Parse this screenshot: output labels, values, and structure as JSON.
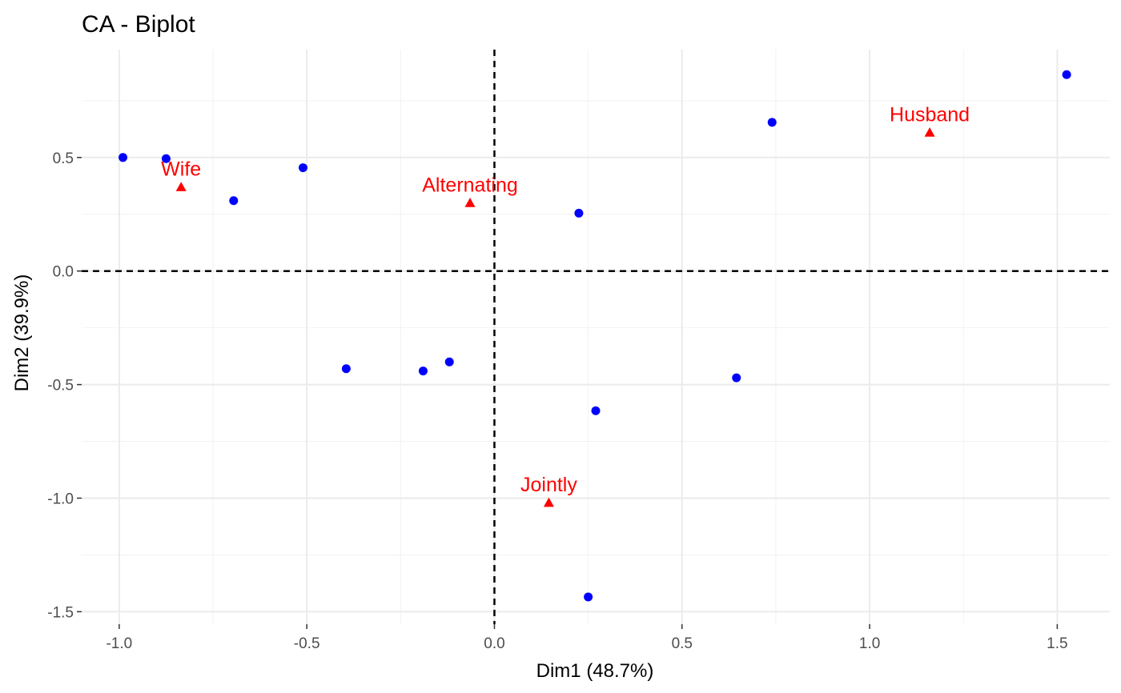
{
  "chart_data": {
    "type": "scatter",
    "title": "CA - Biplot",
    "xlabel": "Dim1 (48.7%)",
    "ylabel": "Dim2 (39.9%)",
    "xlim": [
      -1.1,
      1.64
    ],
    "ylim": [
      -1.555,
      0.975
    ],
    "x_ticks": [
      -1.0,
      -0.5,
      0.0,
      0.5,
      1.0,
      1.5
    ],
    "x_tick_labels": [
      "-1.0",
      "-0.5",
      "0.0",
      "0.5",
      "1.0",
      "1.5"
    ],
    "y_ticks": [
      -1.5,
      -1.0,
      -0.5,
      0.0,
      0.5
    ],
    "y_tick_labels": [
      "-1.5",
      "-1.0",
      "-0.5",
      "0.0",
      "0.5"
    ],
    "grid": true,
    "reference_lines": {
      "x": 0,
      "y": 0,
      "style": "dashed"
    },
    "series": [
      {
        "role": "rows",
        "marker": "circle",
        "color": "#0000ff",
        "points": [
          {
            "x": -0.99,
            "y": 0.5
          },
          {
            "x": -0.875,
            "y": 0.495
          },
          {
            "x": -0.695,
            "y": 0.31
          },
          {
            "x": -0.51,
            "y": 0.455
          },
          {
            "x": -0.395,
            "y": -0.43
          },
          {
            "x": -0.19,
            "y": -0.44
          },
          {
            "x": -0.12,
            "y": -0.4
          },
          {
            "x": 0.225,
            "y": 0.255
          },
          {
            "x": 0.27,
            "y": -0.615
          },
          {
            "x": 0.25,
            "y": -1.435
          },
          {
            "x": 0.645,
            "y": -0.47
          },
          {
            "x": 0.74,
            "y": 0.655
          },
          {
            "x": 1.525,
            "y": 0.865
          }
        ]
      },
      {
        "role": "columns",
        "marker": "triangle",
        "color": "#ff0000",
        "points": [
          {
            "label": "Wife",
            "x": -0.835,
            "y": 0.37
          },
          {
            "label": "Alternating",
            "x": -0.065,
            "y": 0.3
          },
          {
            "label": "Husband",
            "x": 1.16,
            "y": 0.61
          },
          {
            "label": "Jointly",
            "x": 0.145,
            "y": -1.02
          }
        ]
      }
    ]
  }
}
